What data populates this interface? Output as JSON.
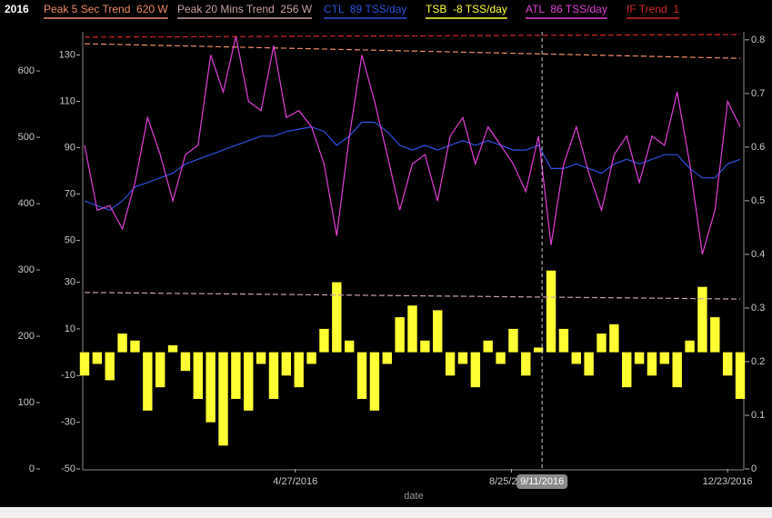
{
  "chart_data": {
    "type": "multi-axis",
    "title": "2016",
    "x_label": "date",
    "x": [
      "1/1/2016",
      "1/8/2016",
      "1/15/2016",
      "1/22/2016",
      "1/29/2016",
      "2/5/2016",
      "2/12/2016",
      "2/19/2016",
      "2/26/2016",
      "3/4/2016",
      "3/11/2016",
      "3/18/2016",
      "3/25/2016",
      "4/1/2016",
      "4/8/2016",
      "4/15/2016",
      "4/22/2016",
      "4/29/2016",
      "5/6/2016",
      "5/13/2016",
      "5/20/2016",
      "5/27/2016",
      "6/3/2016",
      "6/10/2016",
      "6/17/2016",
      "6/24/2016",
      "7/1/2016",
      "7/8/2016",
      "7/15/2016",
      "7/22/2016",
      "7/29/2016",
      "8/5/2016",
      "8/12/2016",
      "8/19/2016",
      "8/26/2016",
      "9/2/2016",
      "9/9/2016",
      "9/16/2016",
      "9/23/2016",
      "9/30/2016",
      "10/7/2016",
      "10/14/2016",
      "10/21/2016",
      "10/28/2016",
      "11/4/2016",
      "11/11/2016",
      "11/18/2016",
      "11/25/2016",
      "12/2/2016",
      "12/9/2016",
      "12/16/2016",
      "12/23/2016",
      "12/30/2016"
    ],
    "xlim": [
      "1/1/2016",
      "12/31/2016"
    ],
    "xticks": [
      "4/27/2016",
      "8/25/2016",
      "12/23/2016"
    ],
    "cursor": "9/11/2016",
    "ylim": [
      0,
      659
    ],
    "yticks": [
      0,
      100,
      200,
      300,
      400,
      500,
      600
    ],
    "y2lim": [
      0,
      0.815
    ],
    "y2ticks": [
      0,
      0.1,
      0.2,
      0.3,
      0.4,
      0.5,
      0.6,
      0.7,
      0.8
    ],
    "y3lim": [
      40,
      140
    ],
    "y3ticks": [
      50,
      70,
      90,
      110,
      130
    ],
    "y4lim": [
      -50,
      38
    ],
    "y4ticks": [
      -50,
      -30,
      -10,
      10,
      30
    ],
    "series": [
      {
        "name": "Peak 5 Sec Trend  620 W",
        "color": "#f08a6a",
        "type": "line",
        "dashed": true,
        "axis": "y",
        "x": [
          "1/1/2016",
          "12/30/2016"
        ],
        "values": [
          641,
          619
        ]
      },
      {
        "name": "Peak 20 Mins Trend  256 W",
        "color": "#c8a0a0",
        "type": "line",
        "dashed": true,
        "axis": "y",
        "x": [
          "1/1/2016",
          "12/30/2016"
        ],
        "values": [
          266,
          256
        ]
      },
      {
        "name": "CTL  89 TSS/day",
        "color": "#3050e0",
        "type": "line",
        "dashed": false,
        "axis": "y3",
        "values": [
          67,
          65,
          63,
          67,
          73,
          75,
          77,
          79,
          83,
          85,
          87,
          89,
          91,
          93,
          95,
          95,
          97,
          98,
          99,
          97,
          91,
          95,
          101,
          101,
          97,
          91,
          89,
          91,
          89,
          91,
          93,
          91,
          93,
          91,
          89,
          89,
          91,
          81,
          81,
          83,
          81,
          79,
          83,
          85,
          83,
          85,
          87,
          87,
          81,
          77,
          77,
          83,
          85
        ]
      },
      {
        "name": "TSB  -8 TSS/day",
        "color": "#ffff33",
        "type": "bar",
        "dashed": false,
        "axis": "y4",
        "values": [
          -10,
          -5,
          -12,
          8,
          5,
          -25,
          -15,
          3,
          -8,
          -20,
          -30,
          -40,
          -20,
          -25,
          -5,
          -20,
          -10,
          -15,
          -5,
          10,
          30,
          5,
          -20,
          -25,
          -5,
          15,
          20,
          5,
          18,
          -10,
          -5,
          -15,
          5,
          -5,
          10,
          -10,
          2,
          35,
          10,
          -5,
          -10,
          8,
          12,
          -15,
          -5,
          -10,
          -5,
          -15,
          5,
          28,
          15,
          -10,
          -20
        ]
      },
      {
        "name": "ATL  86 TSS/day",
        "color": "#e040d8",
        "type": "line",
        "dashed": false,
        "axis": "y3",
        "values": [
          91,
          63,
          65,
          55,
          75,
          103,
          87,
          67,
          87,
          91,
          130,
          114,
          138,
          110,
          106,
          134,
          103,
          106,
          99,
          83,
          52,
          95,
          130,
          110,
          87,
          63,
          83,
          87,
          67,
          95,
          103,
          83,
          99,
          91,
          83,
          71,
          95,
          48,
          83,
          99,
          79,
          63,
          87,
          95,
          75,
          95,
          91,
          114,
          83,
          44,
          63,
          110,
          99
        ]
      },
      {
        "name": "IF Trend  1",
        "color": "#d02828",
        "type": "line",
        "dashed": true,
        "axis": "y2",
        "x": [
          "1/1/2016",
          "12/30/2016"
        ],
        "values": [
          0.805,
          0.81
        ]
      }
    ]
  }
}
